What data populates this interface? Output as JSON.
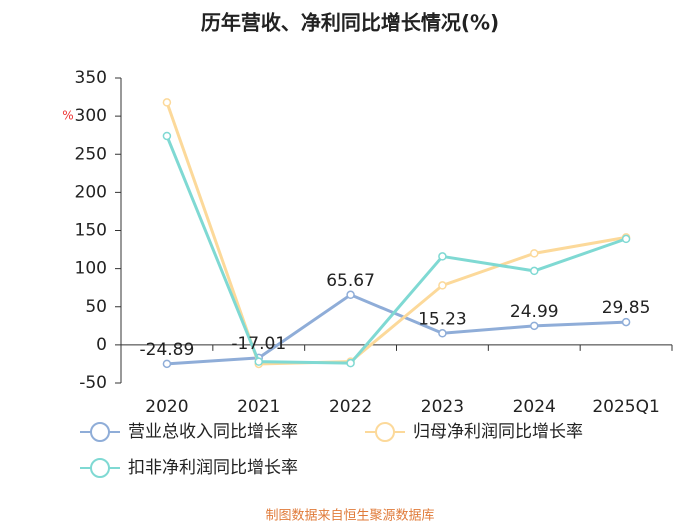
{
  "chart_data": {
    "type": "line",
    "title": "历年营收、净利同比增长情况(%)",
    "y_unit": "%",
    "categories": [
      "2020",
      "2021",
      "2022",
      "2023",
      "2024",
      "2025Q1"
    ],
    "series": [
      {
        "name": "营业总收入同比增长率",
        "color": "#8fadd8",
        "values": [
          -24.89,
          -17.01,
          65.67,
          15.23,
          24.99,
          29.85
        ],
        "show_labels": true
      },
      {
        "name": "归母净利润同比增长率",
        "color": "#fcd99a",
        "values": [
          318,
          -25,
          -22,
          78,
          120,
          141
        ]
      },
      {
        "name": "扣非净利润同比增长率",
        "color": "#7fd9d3",
        "values": [
          274,
          -22,
          -24,
          116,
          97,
          139
        ]
      }
    ],
    "ylim": [
      -50,
      350
    ],
    "yticks": [
      -50,
      0,
      50,
      100,
      150,
      200,
      250,
      300,
      350
    ],
    "grid": false,
    "source": "制图数据来自恒生聚源数据库"
  }
}
